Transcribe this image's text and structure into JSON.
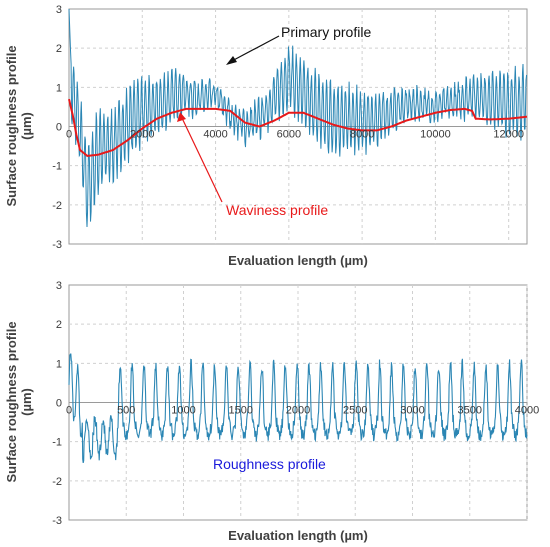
{
  "chart_data": [
    {
      "type": "line",
      "xlabel": "Evaluation  length (µm)",
      "ylabel": "Surface roughness profile (µm)",
      "xlim": [
        0,
        12500
      ],
      "ylim": [
        -3,
        3
      ],
      "x_ticks": [
        0,
        2000,
        4000,
        6000,
        8000,
        10000,
        12000
      ],
      "y_ticks": [
        3,
        2,
        1,
        0,
        -1,
        -2,
        -3
      ],
      "grid": true,
      "series": [
        {
          "name": "Primary profile",
          "color": "#2b86b4",
          "x": [
            0,
            250,
            500,
            800,
            1200,
            1800,
            2400,
            3000,
            3300,
            3600,
            4000,
            4400,
            4800,
            5200,
            5600,
            6000,
            6300,
            6600,
            7000,
            7500,
            8000,
            8500,
            9000,
            9500,
            10000,
            10500,
            11000,
            11500,
            12000,
            12500
          ],
          "y": [
            1.2,
            0.2,
            -1.6,
            -0.6,
            -0.5,
            0.3,
            0.5,
            0.9,
            0.8,
            0.7,
            0.8,
            0.3,
            0.0,
            0.2,
            0.7,
            1.3,
            0.9,
            0.6,
            0.3,
            0.2,
            0.1,
            0.2,
            0.5,
            0.6,
            0.5,
            0.6,
            0.8,
            0.7,
            0.6,
            0.6
          ],
          "amplitude": 0.8
        },
        {
          "name": "Waviness profile",
          "color": "#e8191a",
          "x": [
            0,
            100,
            200,
            300,
            500,
            800,
            1200,
            1600,
            2000,
            2400,
            2800,
            3200,
            3600,
            4000,
            4400,
            4800,
            5200,
            5600,
            6000,
            6400,
            6800,
            7200,
            7600,
            8000,
            8400,
            8800,
            9200,
            9600,
            10000,
            10400,
            10800,
            11000,
            11100,
            11500,
            12000,
            12500
          ],
          "y": [
            0.7,
            0.3,
            -0.2,
            -0.6,
            -0.75,
            -0.72,
            -0.6,
            -0.35,
            -0.05,
            0.2,
            0.35,
            0.45,
            0.45,
            0.45,
            0.4,
            0.1,
            0.0,
            0.15,
            0.35,
            0.35,
            0.2,
            0.05,
            -0.05,
            -0.1,
            -0.1,
            0.0,
            0.15,
            0.25,
            0.35,
            0.42,
            0.45,
            0.4,
            0.2,
            0.18,
            0.2,
            0.25
          ]
        }
      ],
      "annotations": [
        {
          "text": "Primary profile",
          "color": "#111111",
          "x": 5600,
          "y": 2.55
        },
        {
          "text": "Waviness profile",
          "color": "#e8191a",
          "x": 5200,
          "y": -2.0
        }
      ]
    },
    {
      "type": "line",
      "xlabel": "Evaluation  length (µm)",
      "ylabel": "Surface roughness profile (µm)",
      "xlim": [
        0,
        4000
      ],
      "ylim": [
        -3,
        3
      ],
      "x_ticks": [
        0,
        500,
        1000,
        1500,
        2000,
        2500,
        3000,
        3500,
        4000
      ],
      "y_ticks": [
        3,
        2,
        1,
        0,
        -1,
        -2,
        -3
      ],
      "grid": true,
      "series": [
        {
          "name": "Roughness profile",
          "color": "#2b86b4",
          "period": 103,
          "peak": 1.3,
          "trough": -0.65
        }
      ],
      "annotations": [
        {
          "text": "Roughness profile",
          "color": "#1a1adb",
          "x": 1900,
          "y": -1.35
        }
      ]
    }
  ]
}
